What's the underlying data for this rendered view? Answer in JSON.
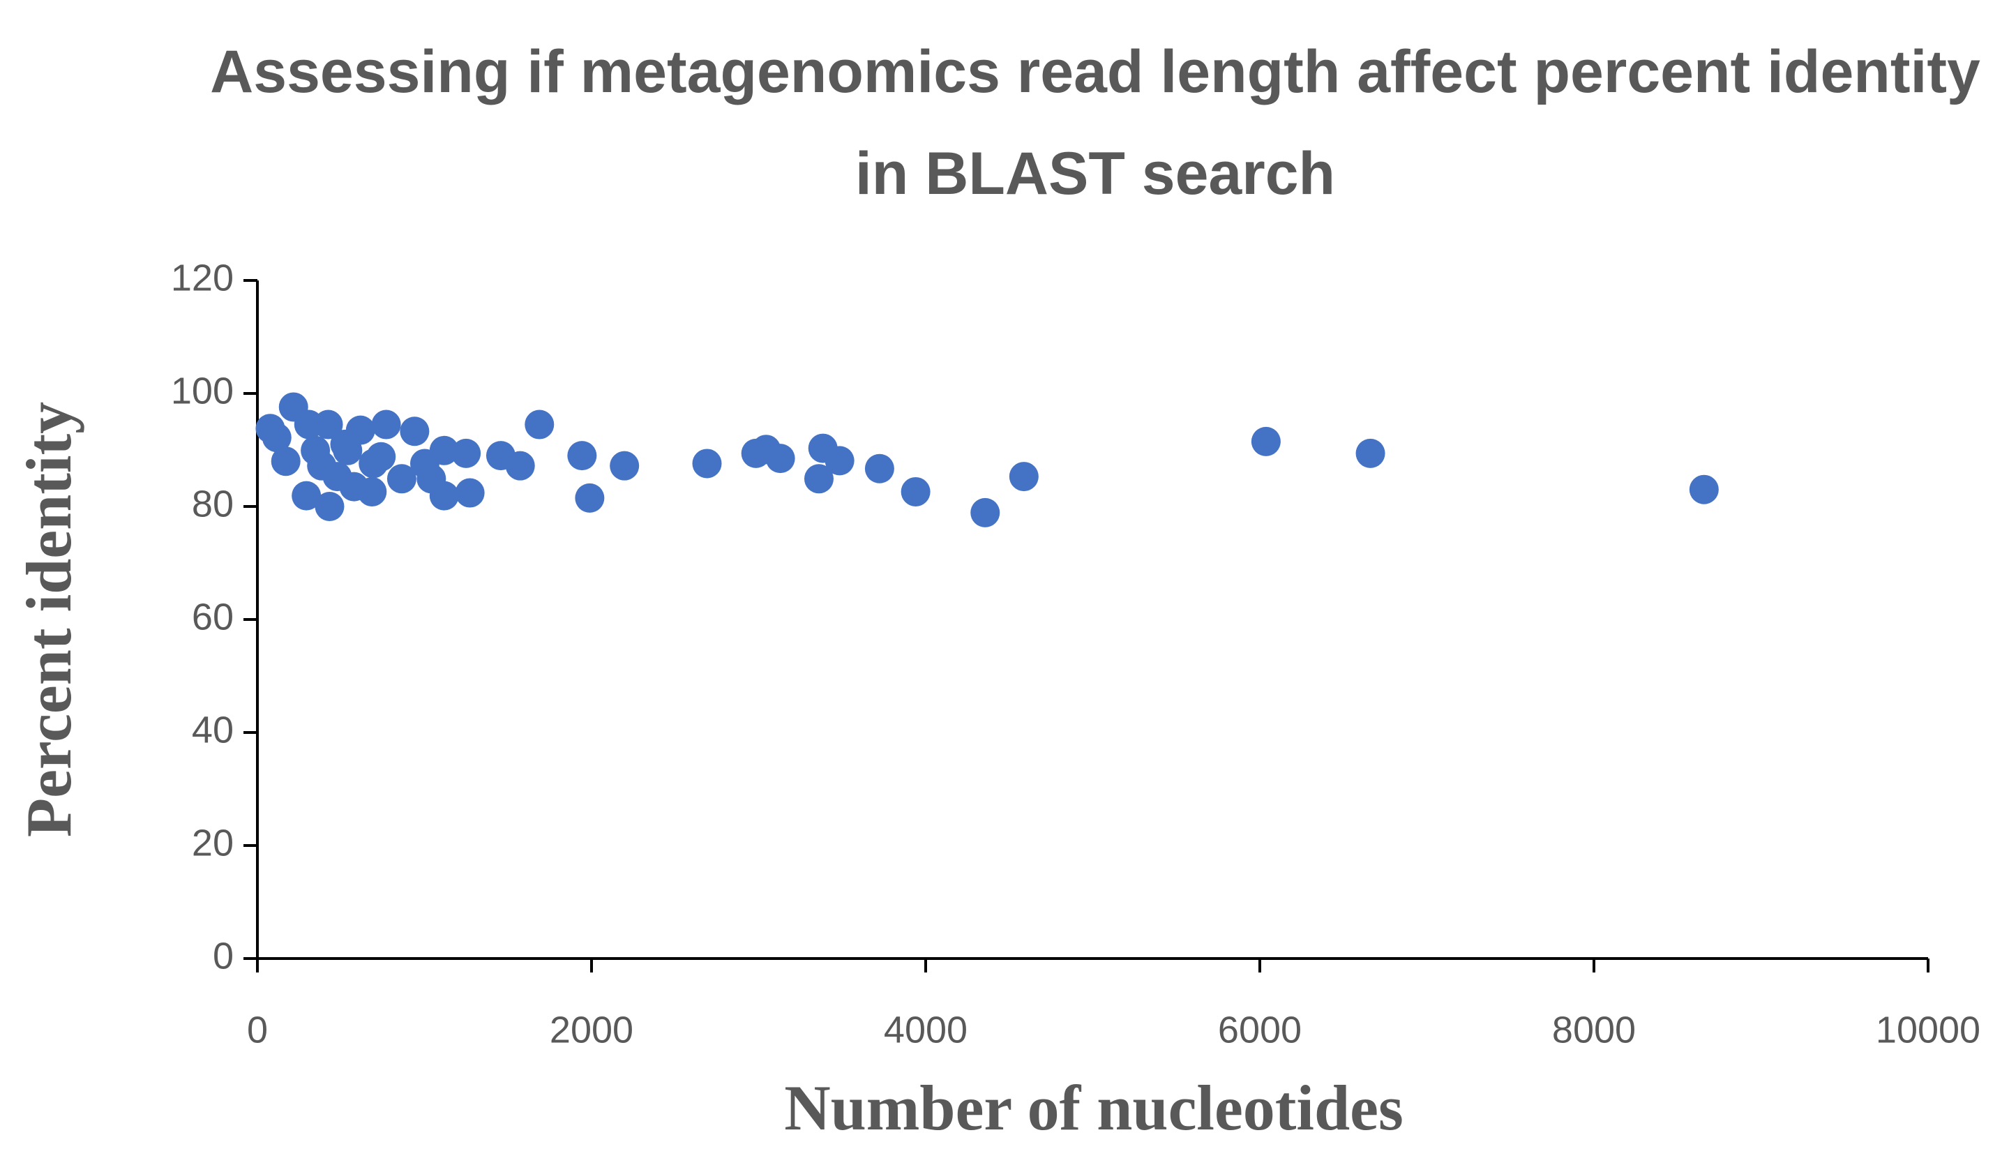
{
  "chart_data": {
    "type": "scatter",
    "title": "Assessing if metagenomics read length affect percent identity in BLAST search",
    "x_label": "Number of nucleotides",
    "y_label": "Percent identity",
    "color": "#4472c4",
    "xlim": [
      0,
      10000
    ],
    "xticks": [
      0,
      2000,
      4000,
      6000,
      8000,
      10000
    ],
    "ylim": [
      0,
      120
    ],
    "yticks": [
      0,
      20,
      40,
      60,
      80,
      100,
      120
    ],
    "grid": false,
    "x": [
      77,
      116,
      170,
      216,
      293,
      308,
      347,
      385,
      424,
      432,
      478,
      524,
      540,
      578,
      617,
      686,
      694,
      740,
      771,
      864,
      941,
      1002,
      1041,
      1118,
      1118,
      1249,
      1272,
      1457,
      1573,
      1688,
      1943,
      1989,
      2197,
      2691,
      2984,
      3045,
      3130,
      3361,
      3385,
      3485,
      3724,
      3940,
      4356,
      4588,
      6037,
      6662,
      8659
    ],
    "values": [
      93.8,
      92.2,
      88,
      97.6,
      81.9,
      94.5,
      89.9,
      87.2,
      94.5,
      80,
      85.3,
      91,
      89.9,
      83.5,
      93.5,
      82.6,
      87.6,
      88.8,
      94.5,
      84.9,
      93.3,
      87.6,
      84.9,
      81.9,
      89.9,
      89.4,
      82.4,
      89,
      87.2,
      94.5,
      89,
      81.5,
      87.2,
      87.6,
      89.4,
      90.1,
      88.5,
      84.9,
      90.3,
      88.1,
      86.7,
      82.6,
      78.9,
      85.3,
      91.5,
      89.4,
      83
    ]
  }
}
